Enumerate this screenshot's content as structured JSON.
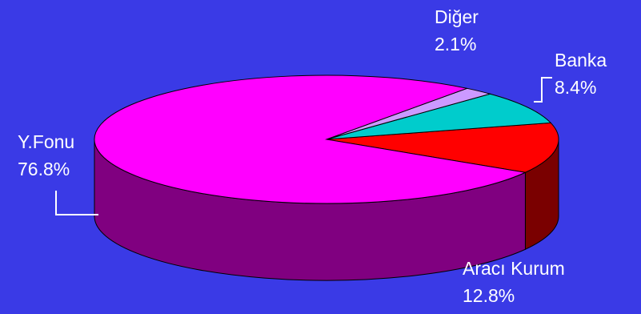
{
  "chart_data": {
    "type": "pie",
    "title": "",
    "style": "3d-exploded-none",
    "background": "#3a3ae6",
    "slices": [
      {
        "label": "Aracı Kurum",
        "value": 12.8,
        "display": "12.8%",
        "color": "#ff0000",
        "side_color": "#7a0000"
      },
      {
        "label": "Banka",
        "value": 8.4,
        "display": "8.4%",
        "color": "#00cccc",
        "side_color": "#006666"
      },
      {
        "label": "Diğer",
        "value": 2.1,
        "display": "2.1%",
        "color": "#cc99ff",
        "side_color": "#66447a"
      },
      {
        "label": "Y.Fonu",
        "value": 76.8,
        "display": "76.8%",
        "color": "#ff00ff",
        "side_color": "#800080"
      }
    ]
  }
}
